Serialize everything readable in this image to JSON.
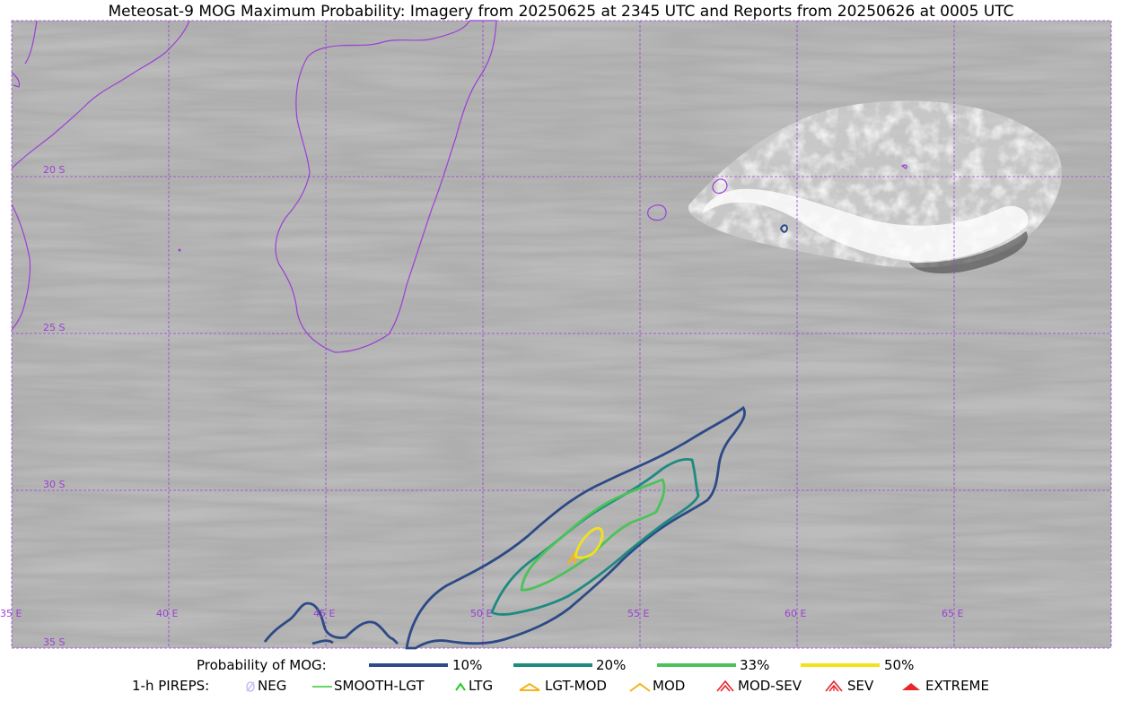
{
  "title": "Meteosat-9 MOG Maximum Probability: Imagery from 20250625 at 2345 UTC and Reports from 20250626 at 0005 UTC",
  "map": {
    "lat_labels": [
      "20 S",
      "25 S",
      "30 S",
      "35 S"
    ],
    "lon_labels": [
      "35 E",
      "40 E",
      "45 E",
      "50 E",
      "55 E",
      "60 E",
      "65 E"
    ],
    "grid_color": "#9b3fd6",
    "coastline_color": "#9b3fd6"
  },
  "legend_probability": {
    "label": "Probability of MOG:",
    "items": [
      {
        "label": "10%",
        "color": "#2d4a87"
      },
      {
        "label": "20%",
        "color": "#1e8a80"
      },
      {
        "label": "33%",
        "color": "#4cc25a"
      },
      {
        "label": "50%",
        "color": "#f2e21a"
      }
    ]
  },
  "legend_pireps": {
    "label": "1-h PIREPS:",
    "items": [
      {
        "label": "NEG",
        "color": "#c7c2f0",
        "icon": "neg-icon"
      },
      {
        "label": "SMOOTH-LGT",
        "color": "#33cc33",
        "icon": "smooth-lgt-icon"
      },
      {
        "label": "LTG",
        "color": "#22cc22",
        "icon": "ltg-icon"
      },
      {
        "label": "LGT-MOD",
        "color": "#f5b31c",
        "icon": "lgt-mod-icon"
      },
      {
        "label": "MOD",
        "color": "#f5b31c",
        "icon": "mod-icon"
      },
      {
        "label": "MOD-SEV",
        "color": "#e8262a",
        "icon": "mod-sev-icon"
      },
      {
        "label": "SEV",
        "color": "#e8262a",
        "icon": "sev-icon"
      },
      {
        "label": "EXTREME",
        "color": "#e8262a",
        "icon": "extreme-icon"
      }
    ]
  }
}
